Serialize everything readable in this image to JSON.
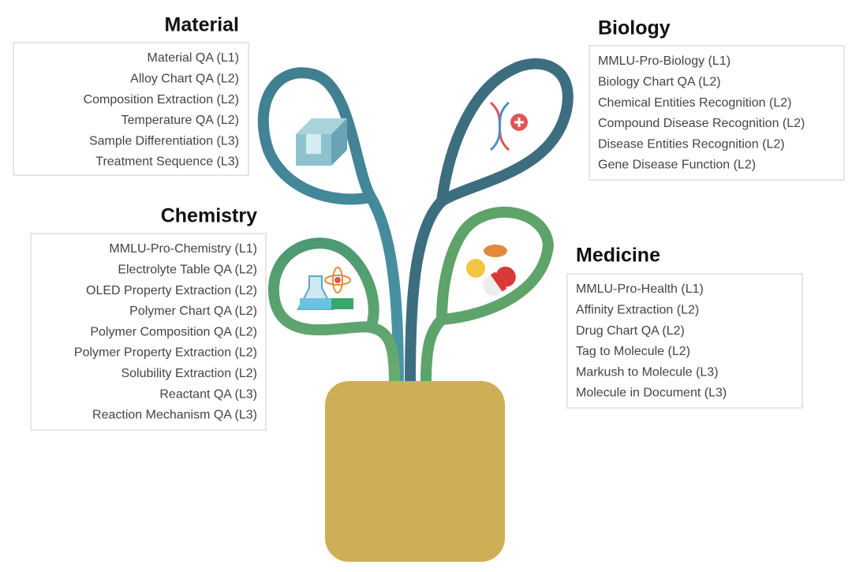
{
  "groups": [
    {
      "title": "Material",
      "items": [
        "Material QA (L1)",
        "Alloy Chart QA (L2)",
        "Composition Extraction (L2)",
        "Temperature QA (L2)",
        "Sample Differentiation (L3)",
        "Treatment Sequence (L3)"
      ]
    },
    {
      "title": "Biology",
      "items": [
        "MMLU-Pro-Biology (L1)",
        "Biology Chart QA (L2)",
        "Chemical Entities Recognition (L2)",
        "Compound Disease Recognition (L2)",
        "Disease Entities Recognition (L2)",
        "Gene Disease Function (L2)"
      ]
    },
    {
      "title": "Chemistry",
      "items": [
        "MMLU-Pro-Chemistry (L1)",
        "Electrolyte Table QA (L2)",
        "OLED Property Extraction (L2)",
        "Polymer Chart QA (L2)",
        "Polymer Composition QA (L2)",
        "Polymer Property Extraction (L2)",
        "Solubility Extraction (L2)",
        "Reactant QA (L3)",
        "Reaction Mechanism QA (L3)"
      ]
    },
    {
      "title": "Medicine",
      "items": [
        "MMLU-Pro-Health (L1)",
        "Affinity Extraction (L2)",
        "Drug Chart QA (L2)",
        "Tag to Molecule (L2)",
        "Markush to Molecule (L3)",
        "Molecule in Document (L3)"
      ]
    }
  ]
}
